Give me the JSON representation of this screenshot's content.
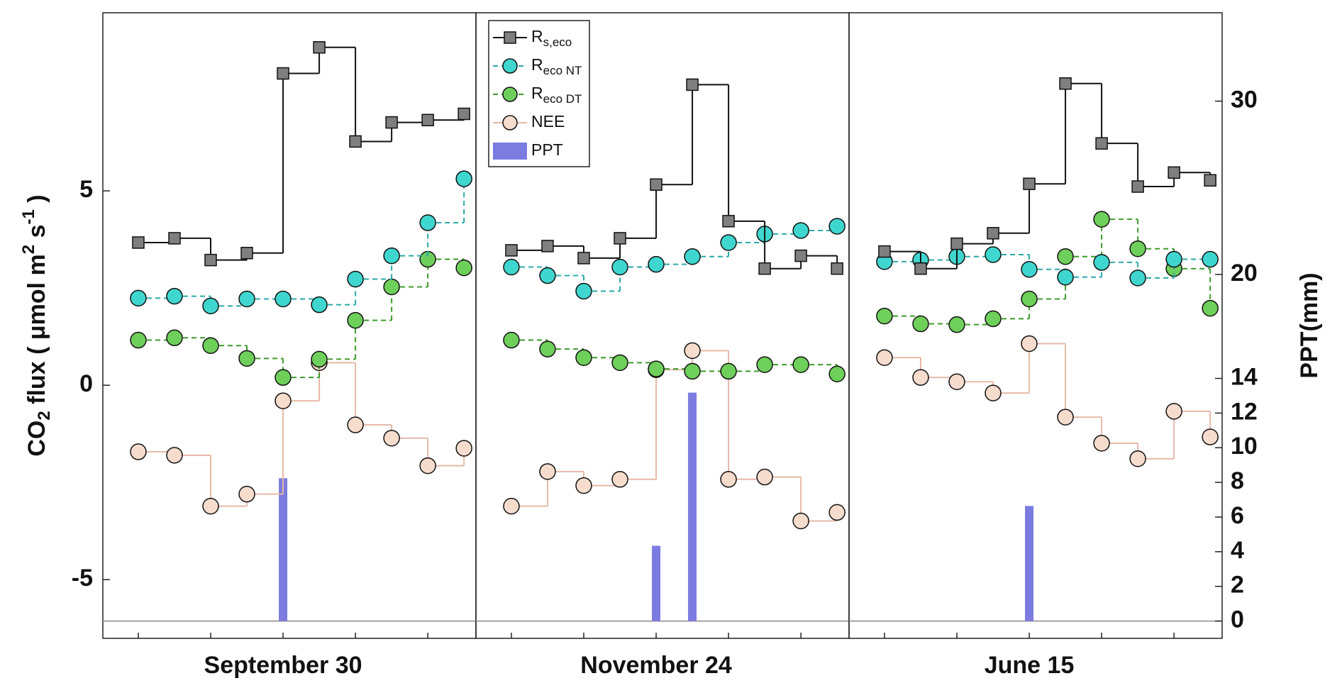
{
  "chart_data": [
    {
      "type": "line",
      "ylabel": [
        "CO",
        "2",
        " flux ( μmol m",
        "2",
        " s",
        "-1",
        " )"
      ],
      "categories": [
        null,
        null,
        null,
        null,
        "September 30",
        null,
        null,
        null,
        null,
        null
      ],
      "ylim": [
        -6.51,
        9.58
      ],
      "yticks": [
        -5,
        0,
        5
      ],
      "y2lim": [
        -1,
        35.1
      ],
      "series": [
        {
          "color": "#7f7f7f",
          "line_color": "#111111",
          "marker": "square",
          "linestyle": "solid",
          "values": [
            3.67,
            3.78,
            3.22,
            3.4,
            8.02,
            8.69,
            6.27,
            6.76,
            6.82,
            6.98
          ]
        },
        {
          "color": "#3fd6cf",
          "line_color": "#2aa9a9",
          "marker": "circle",
          "linestyle": "dashed",
          "values": [
            2.24,
            2.29,
            2.04,
            2.22,
            2.22,
            2.07,
            2.73,
            3.33,
            4.18,
            5.31
          ]
        },
        {
          "color": "#6fcf5b",
          "line_color": "#3c9b2a",
          "marker": "circle",
          "linestyle": "dashed",
          "values": [
            1.16,
            1.22,
            1.02,
            0.69,
            0.2,
            0.67,
            1.67,
            2.53,
            3.24,
            3.02
          ]
        },
        {
          "color": "#f6dccd",
          "line_color": "#e6b9a8",
          "marker": "circle",
          "linestyle": "solid",
          "values": [
            -1.71,
            -1.8,
            -3.11,
            -2.8,
            -0.4,
            0.58,
            -1.02,
            -1.36,
            -2.07,
            -1.62
          ]
        },
        {
          "color": "#7b7be0",
          "type": "bar",
          "axis": "y2",
          "values": [
            0,
            0,
            0,
            0,
            8.24,
            0,
            0,
            0,
            0,
            0
          ]
        }
      ]
    },
    {
      "type": "line",
      "categories": [
        null,
        null,
        null,
        null,
        "November 24",
        null,
        null,
        null,
        null,
        null
      ],
      "ylim": [
        -6.51,
        9.58
      ],
      "y2lim": [
        -1,
        35.1
      ],
      "legend": "upper left",
      "series": [
        {
          "name": "R",
          "name_sub": "s,eco",
          "color": "#7f7f7f",
          "line_color": "#111111",
          "marker": "square",
          "linestyle": "solid",
          "values": [
            3.47,
            3.58,
            3.27,
            3.78,
            5.16,
            7.73,
            4.22,
            3.0,
            3.33,
            3.0
          ]
        },
        {
          "name": "R",
          "name_sub": "eco NT",
          "color": "#3fd6cf",
          "line_color": "#2aa9a9",
          "marker": "circle",
          "linestyle": "dashed",
          "values": [
            3.04,
            2.82,
            2.42,
            3.04,
            3.11,
            3.31,
            3.67,
            3.89,
            3.98,
            4.09
          ]
        },
        {
          "name": "R",
          "name_sub": "eco DT",
          "color": "#6fcf5b",
          "line_color": "#3c9b2a",
          "marker": "circle",
          "linestyle": "dashed",
          "values": [
            1.16,
            0.93,
            0.71,
            0.58,
            0.42,
            0.36,
            0.36,
            0.53,
            0.53,
            0.29
          ]
        },
        {
          "name": "NEE",
          "color": "#f6dccd",
          "line_color": "#e6b9a8",
          "marker": "circle",
          "linestyle": "solid",
          "values": [
            -3.11,
            -2.22,
            -2.58,
            -2.42,
            0.4,
            0.89,
            -2.42,
            -2.36,
            -3.49,
            -3.27
          ]
        },
        {
          "name": "PPT",
          "color": "#7b7be0",
          "type": "bar",
          "axis": "y2",
          "values": [
            0,
            0,
            0,
            0,
            4.34,
            13.18,
            0,
            0,
            0,
            0
          ]
        }
      ]
    },
    {
      "type": "line",
      "categories": [
        null,
        null,
        null,
        null,
        "June 15",
        null,
        null,
        null,
        null,
        null
      ],
      "ylim": [
        -6.51,
        9.58
      ],
      "y2lim": [
        -1,
        35.1
      ],
      "y2label": "PPT(mm)",
      "y2ticks": [
        0,
        2,
        4,
        6,
        8,
        10,
        12,
        14,
        20,
        30
      ],
      "series": [
        {
          "color": "#7f7f7f",
          "line_color": "#111111",
          "marker": "square",
          "linestyle": "solid",
          "values": [
            3.44,
            3.0,
            3.64,
            3.91,
            5.18,
            7.76,
            6.22,
            5.11,
            5.47,
            5.27
          ]
        },
        {
          "color": "#3fd6cf",
          "line_color": "#2aa9a9",
          "marker": "circle",
          "linestyle": "dashed",
          "values": [
            3.18,
            3.22,
            3.31,
            3.36,
            2.98,
            2.78,
            3.16,
            2.76,
            3.24,
            3.24
          ]
        },
        {
          "color": "#6fcf5b",
          "line_color": "#3c9b2a",
          "marker": "circle",
          "linestyle": "dashed",
          "values": [
            1.78,
            1.58,
            1.56,
            1.71,
            2.22,
            3.31,
            4.27,
            3.51,
            3.0,
            1.98
          ]
        },
        {
          "color": "#f6dccd",
          "line_color": "#e6b9a8",
          "marker": "circle",
          "linestyle": "solid",
          "values": [
            0.71,
            0.2,
            0.09,
            -0.2,
            1.07,
            -0.82,
            -1.49,
            -1.89,
            -0.67,
            -1.33
          ]
        },
        {
          "color": "#7b7be0",
          "type": "bar",
          "axis": "y2",
          "values": [
            0,
            0,
            0,
            0,
            6.64,
            0,
            0,
            0,
            0,
            0
          ]
        }
      ]
    }
  ]
}
